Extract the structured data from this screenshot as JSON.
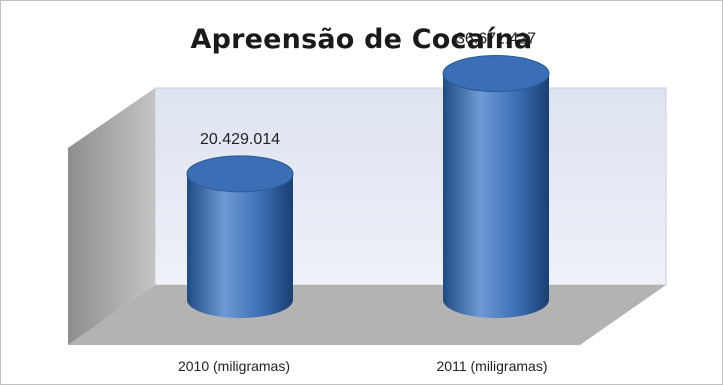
{
  "chart_data": {
    "type": "bar",
    "title": "Apreensão de Cocaína",
    "categories": [
      "2010 (miligramas)",
      "2011 (miligramas)"
    ],
    "values": [
      20429014,
      36671427
    ],
    "value_labels": [
      "20.429.014",
      "36.671.427"
    ],
    "ylim": [
      0,
      40000000
    ],
    "grid": false,
    "legend": "none",
    "style": "3d-cylinder",
    "colors": {
      "bar": "#3a6fb5",
      "bar_dark": "#1f4a82",
      "bar_light": "#6f9ad6",
      "back_wall": "#e4e9f4",
      "side_wall": "#b5b5b5",
      "floor": "#b0b0b0"
    }
  }
}
